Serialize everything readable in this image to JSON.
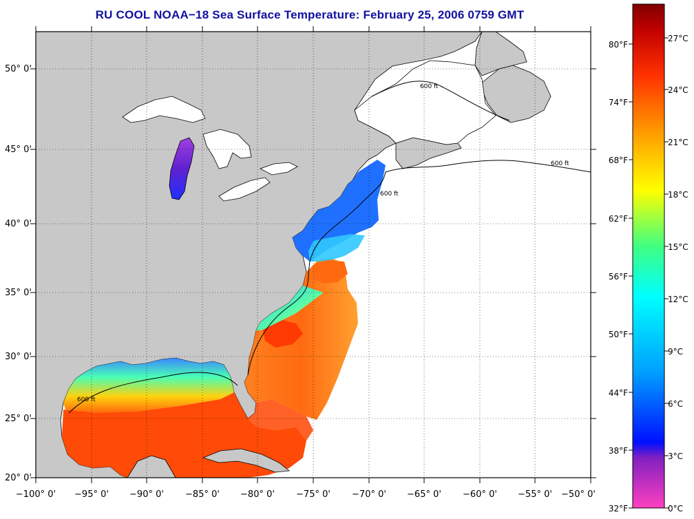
{
  "title": "RU COOL  NOAA−18  Sea Surface Temperature:  February 25, 2006 0759 GMT",
  "map": {
    "lon_ticks": [
      "−100° 0'",
      "−95° 0'",
      "−90° 0'",
      "−85° 0'",
      "−80° 0'",
      "−75° 0'",
      "−70° 0'",
      "−65° 0'",
      "−60° 0'",
      "−55° 0'",
      "−50° 0'"
    ],
    "lat_ticks": [
      "20° 0'",
      "25° 0'",
      "30° 0'",
      "35° 0'",
      "40° 0'",
      "45° 0'",
      "50° 0'"
    ],
    "isobath_label": "600 ft",
    "land_color": "#c8c8c8",
    "no_data_color": "#ffffff"
  },
  "colorbar": {
    "fahrenheit_labels": [
      "32°F",
      "38°F",
      "44°F",
      "50°F",
      "56°F",
      "62°F",
      "68°F",
      "74°F",
      "80°F"
    ],
    "celsius_labels": [
      "0°C",
      "3°C",
      "6°C",
      "9°C",
      "12°C",
      "15°C",
      "18°C",
      "21°C",
      "24°C",
      "27°C"
    ],
    "colors": [
      "#ff40c0",
      "#8020c0",
      "#0010ff",
      "#00a0ff",
      "#00ffff",
      "#40ff80",
      "#ffff00",
      "#ffa000",
      "#ff3000",
      "#c00000",
      "#800000"
    ]
  }
}
